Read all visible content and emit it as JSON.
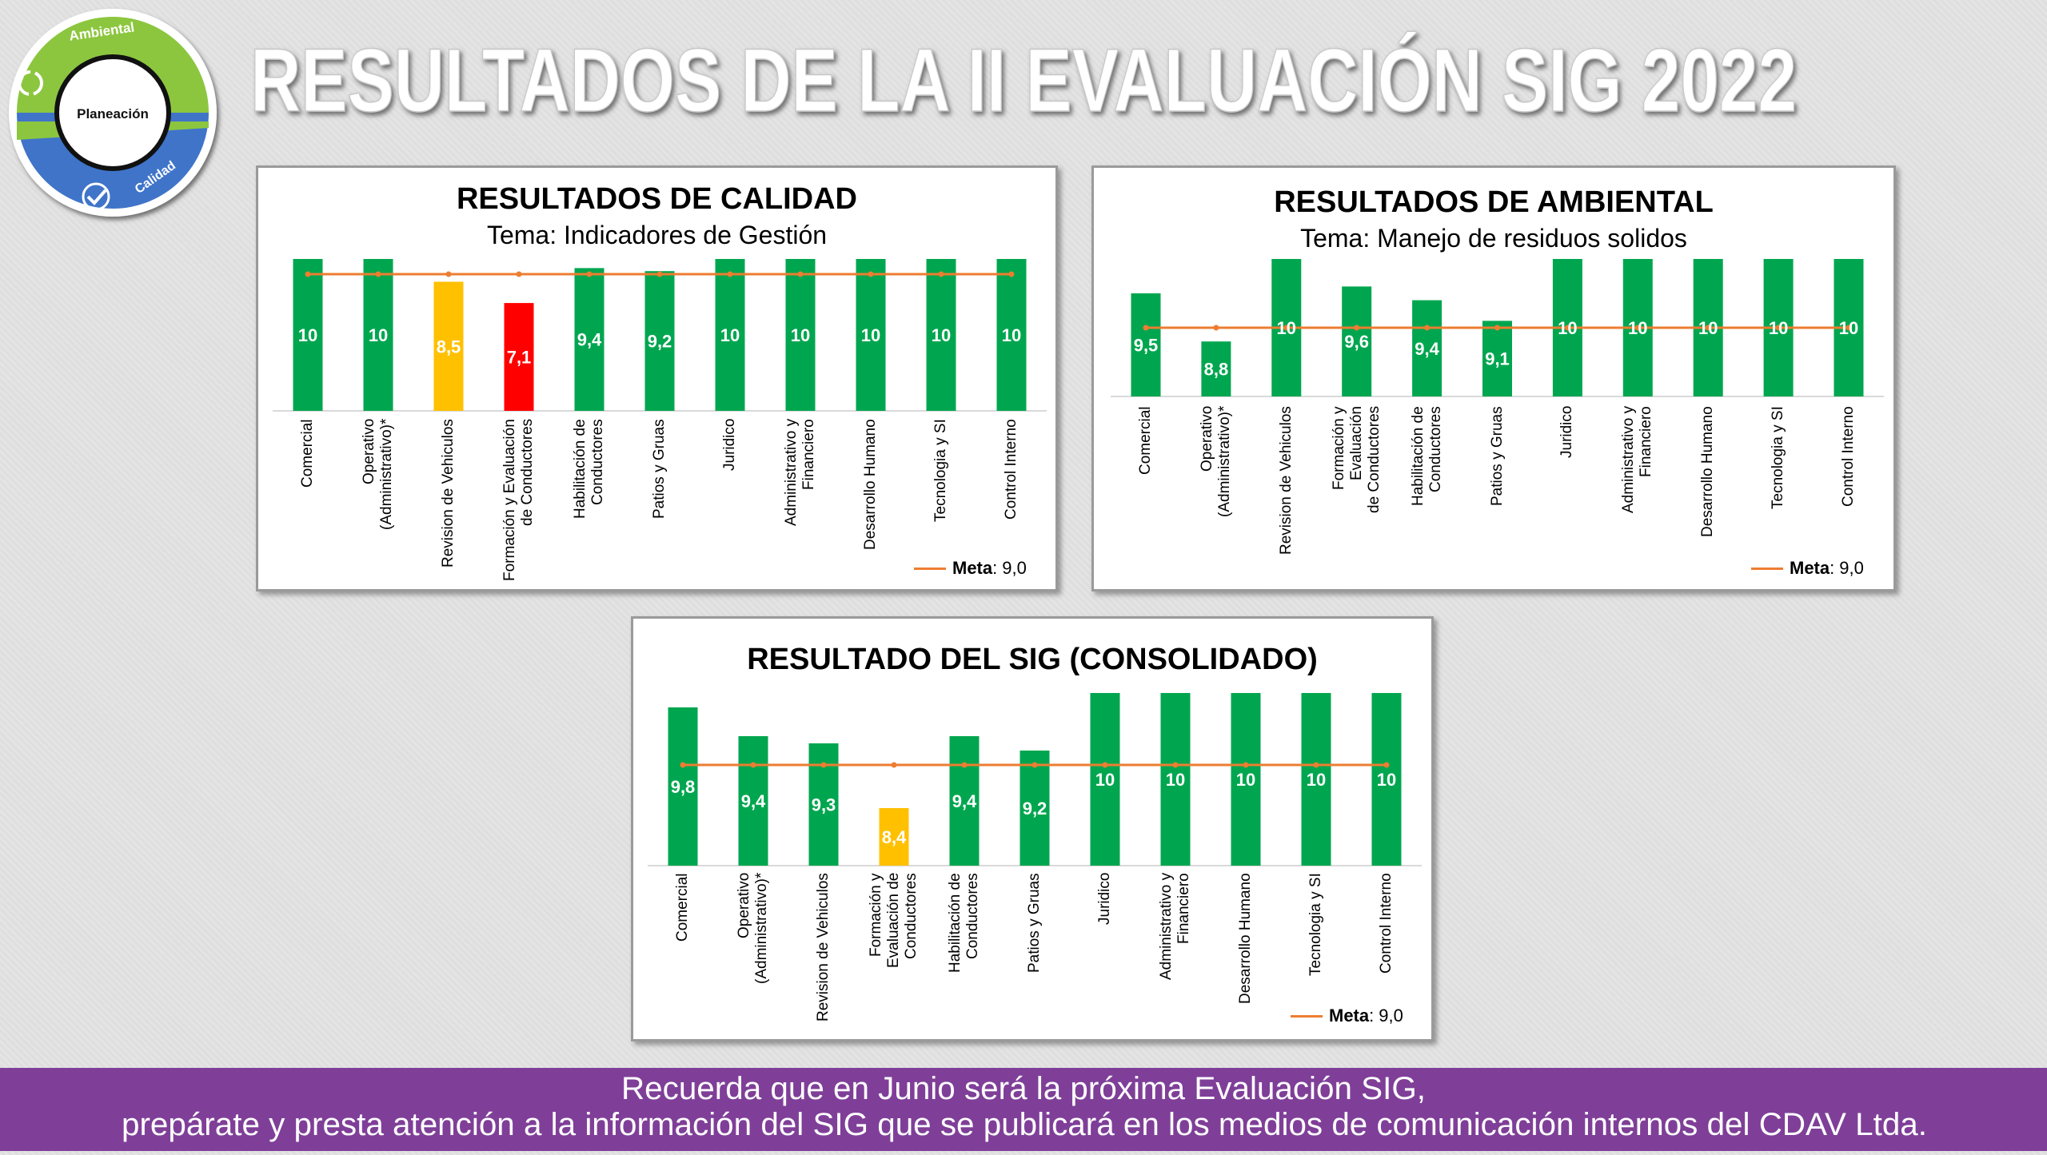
{
  "header": {
    "title": "RESULTADOS DE LA II EVALUACIÓN SIG 2022"
  },
  "logo": {
    "top": "Ambiental",
    "center": "Planeación",
    "bottom": "Calidad"
  },
  "chart_data": [
    {
      "type": "bar",
      "title": "RESULTADOS DE CALIDAD",
      "subtitle": "Tema: Indicadores de Gestión",
      "categories": [
        "Comercial",
        "Operativo\n(Administrativo)*",
        "Revision de Vehiculos",
        "Formación y Evaluación\nde Conductores",
        "Habilitación de\nConductores",
        "Patios y Gruas",
        "Juridico",
        "Administrativo y\nFinanciero",
        "Desarrollo Humano",
        "Tecnologia y SI",
        "Control Interno"
      ],
      "values": [
        10,
        10,
        8.5,
        7.1,
        9.4,
        9.2,
        10,
        10,
        10,
        10,
        10
      ],
      "value_labels": [
        "10",
        "10",
        "8,5",
        "7,1",
        "9,4",
        "9,2",
        "10",
        "10",
        "10",
        "10",
        "10"
      ],
      "colors": [
        "#00a64f",
        "#00a64f",
        "#ffc000",
        "#ff0000",
        "#00a64f",
        "#00a64f",
        "#00a64f",
        "#00a64f",
        "#00a64f",
        "#00a64f",
        "#00a64f"
      ],
      "ylim": [
        0,
        10
      ],
      "meta": {
        "name": "Meta",
        "separator": ":",
        "value": 9,
        "value_label": "9,0",
        "color": "#ed7d31"
      },
      "legend": "bottom-right"
    },
    {
      "type": "bar",
      "title": "RESULTADOS DE AMBIENTAL",
      "subtitle": "Tema: Manejo de residuos solidos",
      "categories": [
        "Comercial",
        "Operativo\n(Administrativo)*",
        "Revision de Vehiculos",
        "Formación y Evaluación\nde Conductores",
        "Habilitación de\nConductores",
        "Patios y Gruas",
        "Juridico",
        "Administrativo y\nFinanciero",
        "Desarrollo Humano",
        "Tecnologia y SI",
        "Control Interno"
      ],
      "values": [
        9.5,
        8.8,
        10,
        9.6,
        9.4,
        9.1,
        10,
        10,
        10,
        10,
        10
      ],
      "value_labels": [
        "9,5",
        "8,8",
        "10",
        "9,6",
        "9,4",
        "9,1",
        "10",
        "10",
        "10",
        "10",
        "10"
      ],
      "colors": [
        "#00a64f",
        "#00a64f",
        "#00a64f",
        "#00a64f",
        "#00a64f",
        "#00a64f",
        "#00a64f",
        "#00a64f",
        "#00a64f",
        "#00a64f",
        "#00a64f"
      ],
      "ylim": [
        8,
        10
      ],
      "meta": {
        "name": "Meta",
        "separator": ":",
        "value": 9,
        "value_label": "9,0",
        "color": "#ed7d31"
      },
      "legend": "bottom-right"
    },
    {
      "type": "bar",
      "title": "RESULTADO DEL SIG (CONSOLIDADO)",
      "categories": [
        "Comercial",
        "Operativo\n(Administrativo)*",
        "Revision de Vehiculos",
        "Formación y\nEvaluación de\nConductores",
        "Habilitación de\nConductores",
        "Patios y Gruas",
        "Juridico",
        "Administrativo y\nFinanciero",
        "Desarrollo Humano",
        "Tecnologia y SI",
        "Control Interno"
      ],
      "values": [
        9.8,
        9.4,
        9.3,
        8.4,
        9.4,
        9.2,
        10,
        10,
        10,
        10,
        10
      ],
      "value_labels": [
        "9,8",
        "9,4",
        "9,3",
        "8,4",
        "9,4",
        "9,2",
        "10",
        "10",
        "10",
        "10",
        "10"
      ],
      "colors": [
        "#00a64f",
        "#00a64f",
        "#00a64f",
        "#ffc000",
        "#00a64f",
        "#00a64f",
        "#00a64f",
        "#00a64f",
        "#00a64f",
        "#00a64f",
        "#00a64f"
      ],
      "ylim": [
        7.6,
        10
      ],
      "meta": {
        "name": "Meta",
        "separator": ":",
        "value": 9,
        "value_label": "9,0",
        "color": "#ed7d31"
      },
      "legend": "bottom-right"
    }
  ],
  "footer": {
    "line1": "Recuerda que en Junio será la próxima Evaluación SIG,",
    "line2": "prepárate y presta atención a la información del SIG que se publicará en los medios de comunicación internos del CDAV Ltda."
  }
}
